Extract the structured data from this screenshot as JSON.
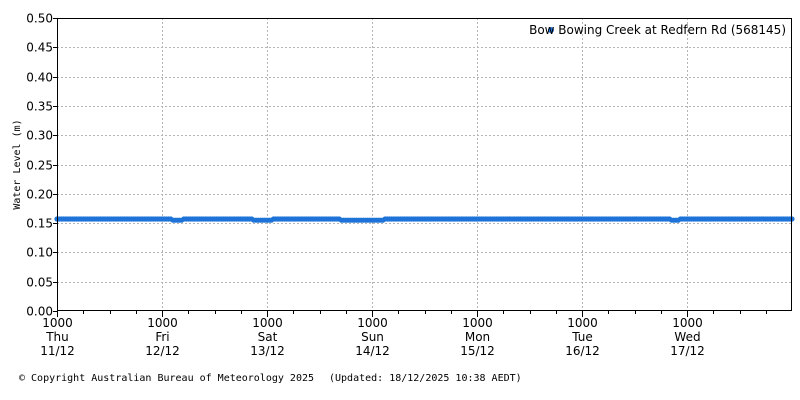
{
  "chart_data": {
    "type": "scatter",
    "ylabel": "Water Level (m)",
    "ylim": [
      0,
      0.5
    ],
    "yticks": [
      "0.00",
      "0.05",
      "0.10",
      "0.15",
      "0.20",
      "0.25",
      "0.30",
      "0.35",
      "0.40",
      "0.45",
      "0.50"
    ],
    "xlim_hours": [
      0,
      168
    ],
    "xticks": [
      {
        "time": "1000",
        "day": "Thu",
        "date": "11/12"
      },
      {
        "time": "1000",
        "day": "Fri",
        "date": "12/12"
      },
      {
        "time": "1000",
        "day": "Sat",
        "date": "13/12"
      },
      {
        "time": "1000",
        "day": "Sun",
        "date": "14/12"
      },
      {
        "time": "1000",
        "day": "Mon",
        "date": "15/12"
      },
      {
        "time": "1000",
        "day": "Tue",
        "date": "16/12"
      },
      {
        "time": "1000",
        "day": "Wed",
        "date": "17/12"
      }
    ],
    "grid": true,
    "legend_position": "top-right",
    "series": [
      {
        "name": "Bow Bowing Creek at Redfern Rd (568145)",
        "color": "#1e73d8",
        "baseline_level": 0.157,
        "dips": [
          {
            "start_hour": 26.5,
            "end_hour": 28.5,
            "level": 0.155
          },
          {
            "start_hour": 45,
            "end_hour": 49,
            "level": 0.155
          },
          {
            "start_hour": 65,
            "end_hour": 74.5,
            "level": 0.155
          },
          {
            "start_hour": 140.5,
            "end_hour": 142,
            "level": 0.155
          }
        ]
      }
    ]
  },
  "footer": {
    "copyright": "© Copyright Australian Bureau of Meteorology 2025",
    "updated": "(Updated: 18/12/2025 10:38 AEDT)"
  }
}
